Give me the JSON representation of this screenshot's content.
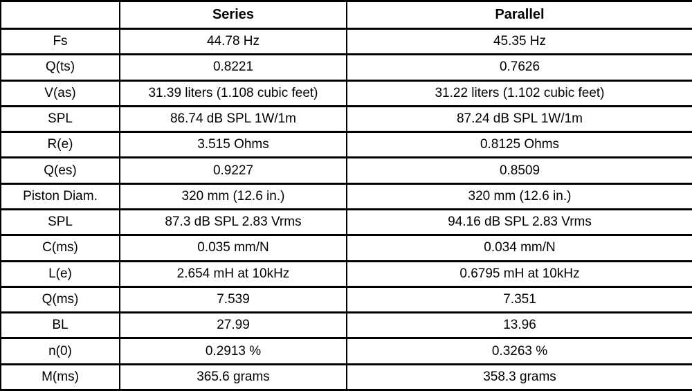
{
  "colors": {
    "border": "#000000",
    "background": "#ffffff",
    "text": "#000000"
  },
  "table": {
    "columns": [
      "",
      "Series",
      "Parallel"
    ],
    "rows": [
      {
        "label": "Fs",
        "series": "44.78 Hz",
        "parallel": "45.35 Hz"
      },
      {
        "label": "Q(ts)",
        "series": "0.8221",
        "parallel": "0.7626"
      },
      {
        "label": "V(as)",
        "series": "31.39 liters (1.108 cubic feet)",
        "parallel": "31.22 liters (1.102 cubic feet)"
      },
      {
        "label": "SPL",
        "series": "86.74 dB SPL 1W/1m",
        "parallel": "87.24 dB SPL 1W/1m"
      },
      {
        "label": "R(e)",
        "series": "3.515 Ohms",
        "parallel": "0.8125 Ohms"
      },
      {
        "label": "Q(es)",
        "series": "0.9227",
        "parallel": "0.8509"
      },
      {
        "label": "Piston Diam.",
        "series": "320 mm (12.6 in.)",
        "parallel": "320 mm (12.6 in.)"
      },
      {
        "label": "SPL",
        "series": "87.3 dB SPL 2.83 Vrms",
        "parallel": "94.16 dB SPL 2.83 Vrms"
      },
      {
        "label": "C(ms)",
        "series": "0.035 mm/N",
        "parallel": "0.034 mm/N"
      },
      {
        "label": "L(e)",
        "series": "2.654 mH at 10kHz",
        "parallel": "0.6795 mH at 10kHz"
      },
      {
        "label": "Q(ms)",
        "series": "7.539",
        "parallel": "7.351"
      },
      {
        "label": "BL",
        "series": "27.99",
        "parallel": "13.96"
      },
      {
        "label": "n(0)",
        "series": "0.2913 %",
        "parallel": "0.3263 %"
      },
      {
        "label": "M(ms)",
        "series": "365.6 grams",
        "parallel": "358.3 grams"
      }
    ]
  }
}
